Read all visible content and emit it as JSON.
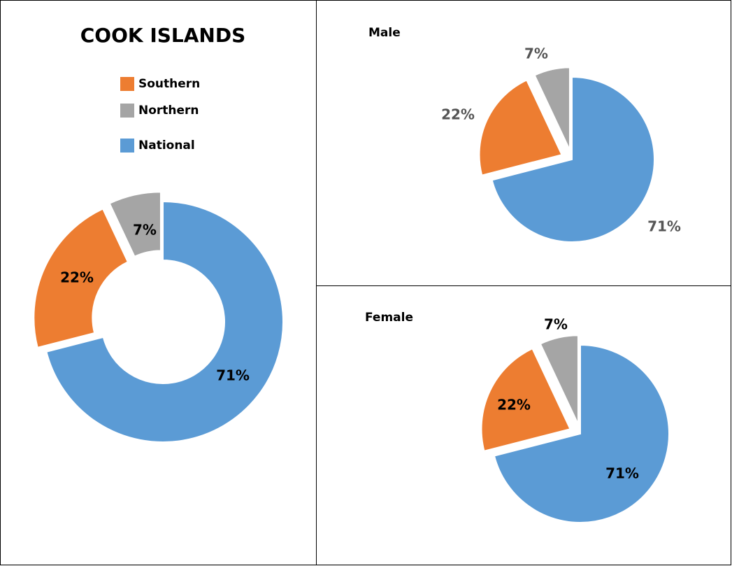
{
  "chart_data": [
    {
      "type": "donut",
      "title": "COOK ISLANDS",
      "categories": [
        "Southern",
        "Northern",
        "National"
      ],
      "values": [
        22,
        7,
        71
      ],
      "value_labels": [
        "22%",
        "7%",
        "71%"
      ],
      "colors": [
        "#ed7d31",
        "#a5a5a5",
        "#5b9bd5"
      ]
    },
    {
      "type": "pie",
      "title": "Male",
      "values": [
        22,
        7,
        71
      ],
      "value_labels": [
        "22%",
        "7%",
        "71%"
      ],
      "colors": [
        "#ed7d31",
        "#a5a5a5",
        "#5b9bd5"
      ]
    },
    {
      "type": "pie",
      "title": "Female",
      "values": [
        22,
        7,
        71
      ],
      "value_labels": [
        "22%",
        "7%",
        "71%"
      ],
      "colors": [
        "#ed7d31",
        "#a5a5a5",
        "#5b9bd5"
      ]
    }
  ]
}
